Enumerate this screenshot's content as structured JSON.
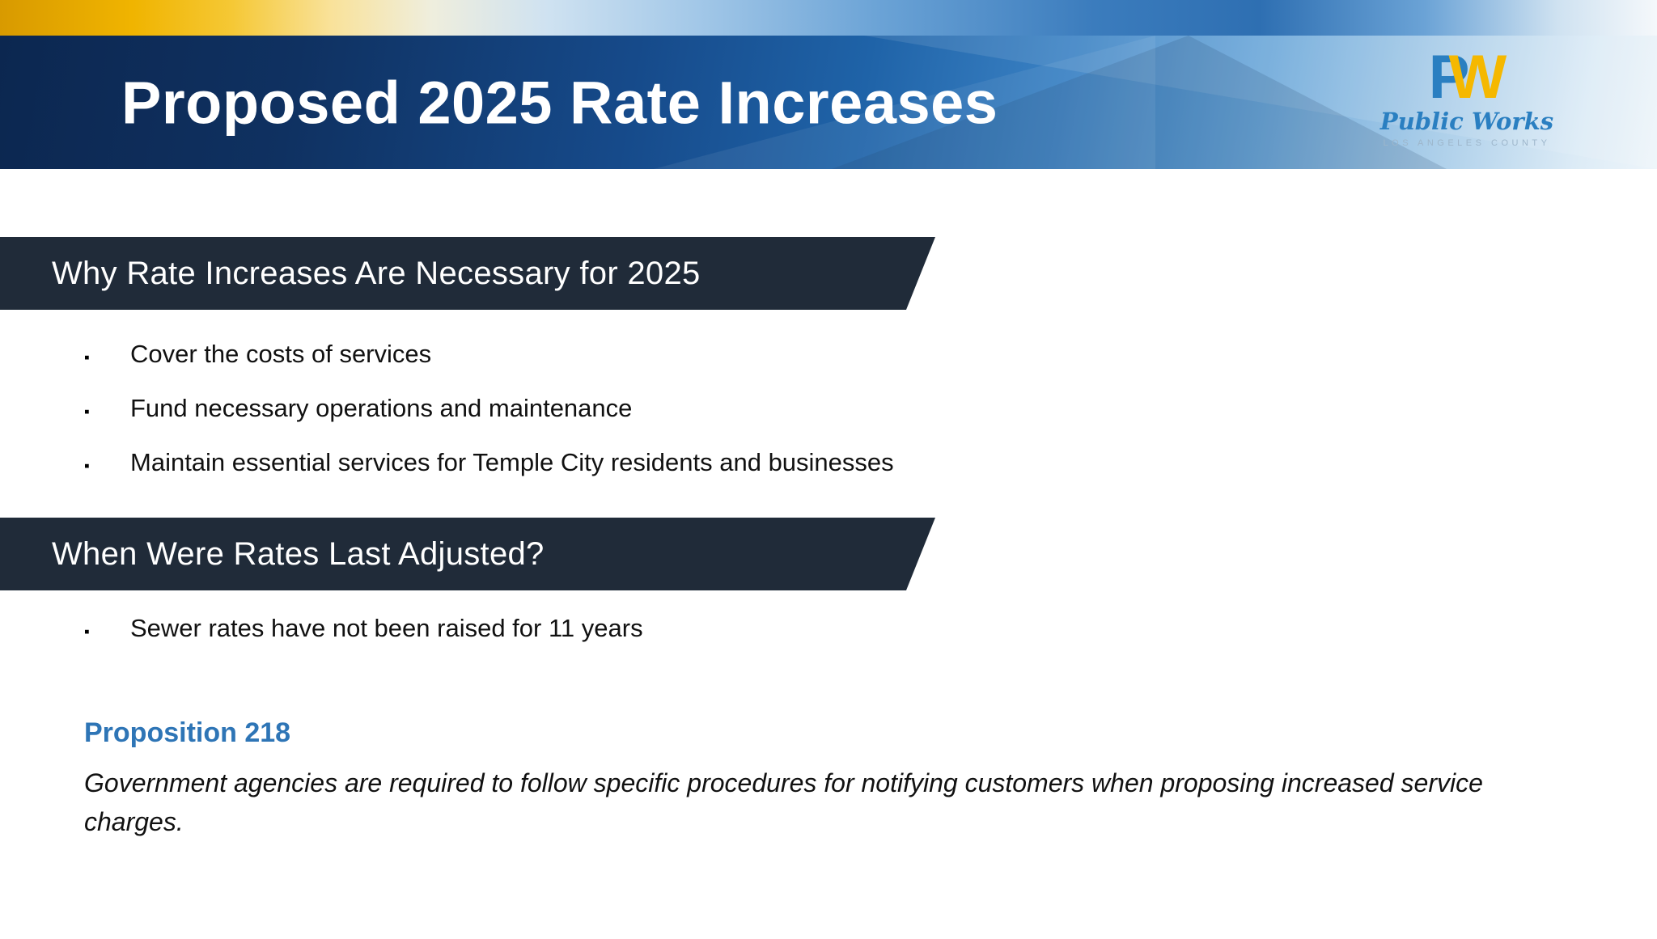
{
  "slide": {
    "title": "Proposed 2025 Rate Increases",
    "logo": {
      "monogram_p": "P",
      "monogram_w": "W",
      "name": "Public Works",
      "subtitle": "LOS ANGELES COUNTY"
    },
    "sections": [
      {
        "heading": "Why Rate Increases Are Necessary for 2025",
        "bullets": [
          "Cover the costs of services",
          "Fund necessary operations and maintenance",
          "Maintain essential services for Temple City residents and businesses"
        ]
      },
      {
        "heading": "When Were Rates Last Adjusted?",
        "bullets": [
          "Sewer rates have not been raised for 11 years"
        ]
      }
    ],
    "note": {
      "heading": "Proposition 218",
      "body": "Government agencies are required to follow specific procedures for notifying customers when proposing increased service charges."
    },
    "colors": {
      "header_dark": "#0c2750",
      "header_light": "#dcebf6",
      "section_bar": "#202b39",
      "accent_blue": "#2e75b6",
      "logo_blue": "#2a7fc1",
      "logo_gold": "#f5b800",
      "strip_gold": "#f0b400"
    },
    "ui": {
      "bullet_char": "▪"
    }
  }
}
